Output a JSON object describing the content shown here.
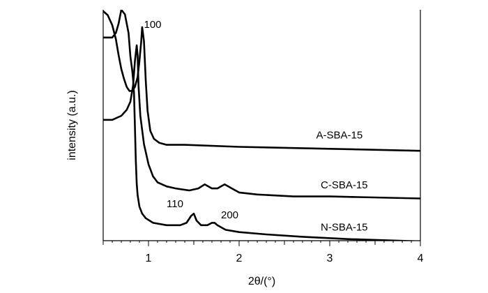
{
  "chart_data": {
    "type": "line",
    "title": "",
    "xlabel": "2θ/(°)",
    "ylabel": "intensity (a.u.)",
    "xlim": [
      0.5,
      4
    ],
    "x_ticks": [
      1,
      2,
      3,
      4
    ],
    "x_tick_labels": [
      "1",
      "2",
      "3",
      "4"
    ],
    "y_ticks_shown": false,
    "grid": false,
    "legend": "labels placed beside each curve",
    "line_color": "#000000",
    "series": [
      {
        "name": "A-SBA-15",
        "points": [
          [
            0.5,
            1.0
          ],
          [
            0.55,
            0.98
          ],
          [
            0.6,
            0.93
          ],
          [
            0.64,
            0.86
          ],
          [
            0.67,
            0.78
          ],
          [
            0.7,
            0.71
          ],
          [
            0.73,
            0.66
          ],
          [
            0.76,
            0.62
          ],
          [
            0.79,
            0.6
          ],
          [
            0.82,
            0.6
          ],
          [
            0.85,
            0.62
          ],
          [
            0.88,
            0.67
          ],
          [
            0.9,
            0.75
          ],
          [
            0.92,
            0.85
          ],
          [
            0.93,
            0.92
          ],
          [
            0.95,
            0.85
          ],
          [
            0.97,
            0.65
          ],
          [
            0.99,
            0.5
          ],
          [
            1.02,
            0.4
          ],
          [
            1.06,
            0.36
          ],
          [
            1.12,
            0.34
          ],
          [
            1.2,
            0.33
          ],
          [
            1.4,
            0.33
          ],
          [
            2.0,
            0.32
          ],
          [
            3.0,
            0.31
          ],
          [
            4.0,
            0.3
          ]
        ]
      },
      {
        "name": "C-SBA-15",
        "points": [
          [
            0.5,
            0.53
          ],
          [
            0.6,
            0.53
          ],
          [
            0.7,
            0.55
          ],
          [
            0.76,
            0.58
          ],
          [
            0.8,
            0.62
          ],
          [
            0.83,
            0.7
          ],
          [
            0.85,
            0.82
          ],
          [
            0.87,
            0.9
          ],
          [
            0.88,
            0.85
          ],
          [
            0.89,
            0.7
          ],
          [
            0.91,
            0.55
          ],
          [
            0.95,
            0.41
          ],
          [
            1.0,
            0.31
          ],
          [
            1.05,
            0.25
          ],
          [
            1.1,
            0.22
          ],
          [
            1.2,
            0.2
          ],
          [
            1.3,
            0.19
          ],
          [
            1.45,
            0.18
          ],
          [
            1.55,
            0.19
          ],
          [
            1.62,
            0.21
          ],
          [
            1.7,
            0.19
          ],
          [
            1.76,
            0.19
          ],
          [
            1.84,
            0.21
          ],
          [
            1.92,
            0.19
          ],
          [
            2.0,
            0.17
          ],
          [
            2.2,
            0.16
          ],
          [
            2.6,
            0.15
          ],
          [
            3.0,
            0.15
          ],
          [
            4.0,
            0.14
          ]
        ]
      },
      {
        "name": "N-SBA-15",
        "points": [
          [
            0.5,
            0.88
          ],
          [
            0.55,
            0.88
          ],
          [
            0.6,
            0.88
          ],
          [
            0.64,
            0.9
          ],
          [
            0.67,
            0.94
          ],
          [
            0.69,
            0.98
          ],
          [
            0.7,
            1.0
          ],
          [
            0.74,
            0.98
          ],
          [
            0.78,
            0.9
          ],
          [
            0.8,
            0.8
          ],
          [
            0.82,
            0.74
          ],
          [
            0.83,
            0.7
          ],
          [
            0.84,
            0.64
          ],
          [
            0.85,
            0.5
          ],
          [
            0.86,
            0.35
          ],
          [
            0.87,
            0.25
          ],
          [
            0.88,
            0.2
          ],
          [
            0.9,
            0.15
          ],
          [
            0.93,
            0.12
          ],
          [
            0.97,
            0.1
          ],
          [
            1.05,
            0.08
          ],
          [
            1.2,
            0.07
          ],
          [
            1.35,
            0.07
          ],
          [
            1.42,
            0.08
          ],
          [
            1.47,
            0.11
          ],
          [
            1.5,
            0.12
          ],
          [
            1.53,
            0.09
          ],
          [
            1.58,
            0.07
          ],
          [
            1.65,
            0.07
          ],
          [
            1.7,
            0.08
          ],
          [
            1.73,
            0.08
          ],
          [
            1.76,
            0.07
          ],
          [
            1.85,
            0.05
          ],
          [
            2.0,
            0.04
          ],
          [
            2.3,
            0.03
          ],
          [
            2.7,
            0.02
          ],
          [
            3.2,
            0.01
          ],
          [
            4.0,
            0.0
          ]
        ]
      }
    ],
    "annotations": [
      {
        "text": "100",
        "x": 0.95,
        "y": 0.96
      },
      {
        "text": "110",
        "x": 1.2,
        "y": 0.12
      },
      {
        "text": "200",
        "x": 1.8,
        "y": 0.07
      },
      {
        "text": "A-SBA-15",
        "x": 2.85,
        "y": 0.33
      },
      {
        "text": "C-SBA-15",
        "x": 2.9,
        "y": 0.16
      },
      {
        "text": "N-SBA-15",
        "x": 2.9,
        "y": 0.02
      }
    ]
  }
}
